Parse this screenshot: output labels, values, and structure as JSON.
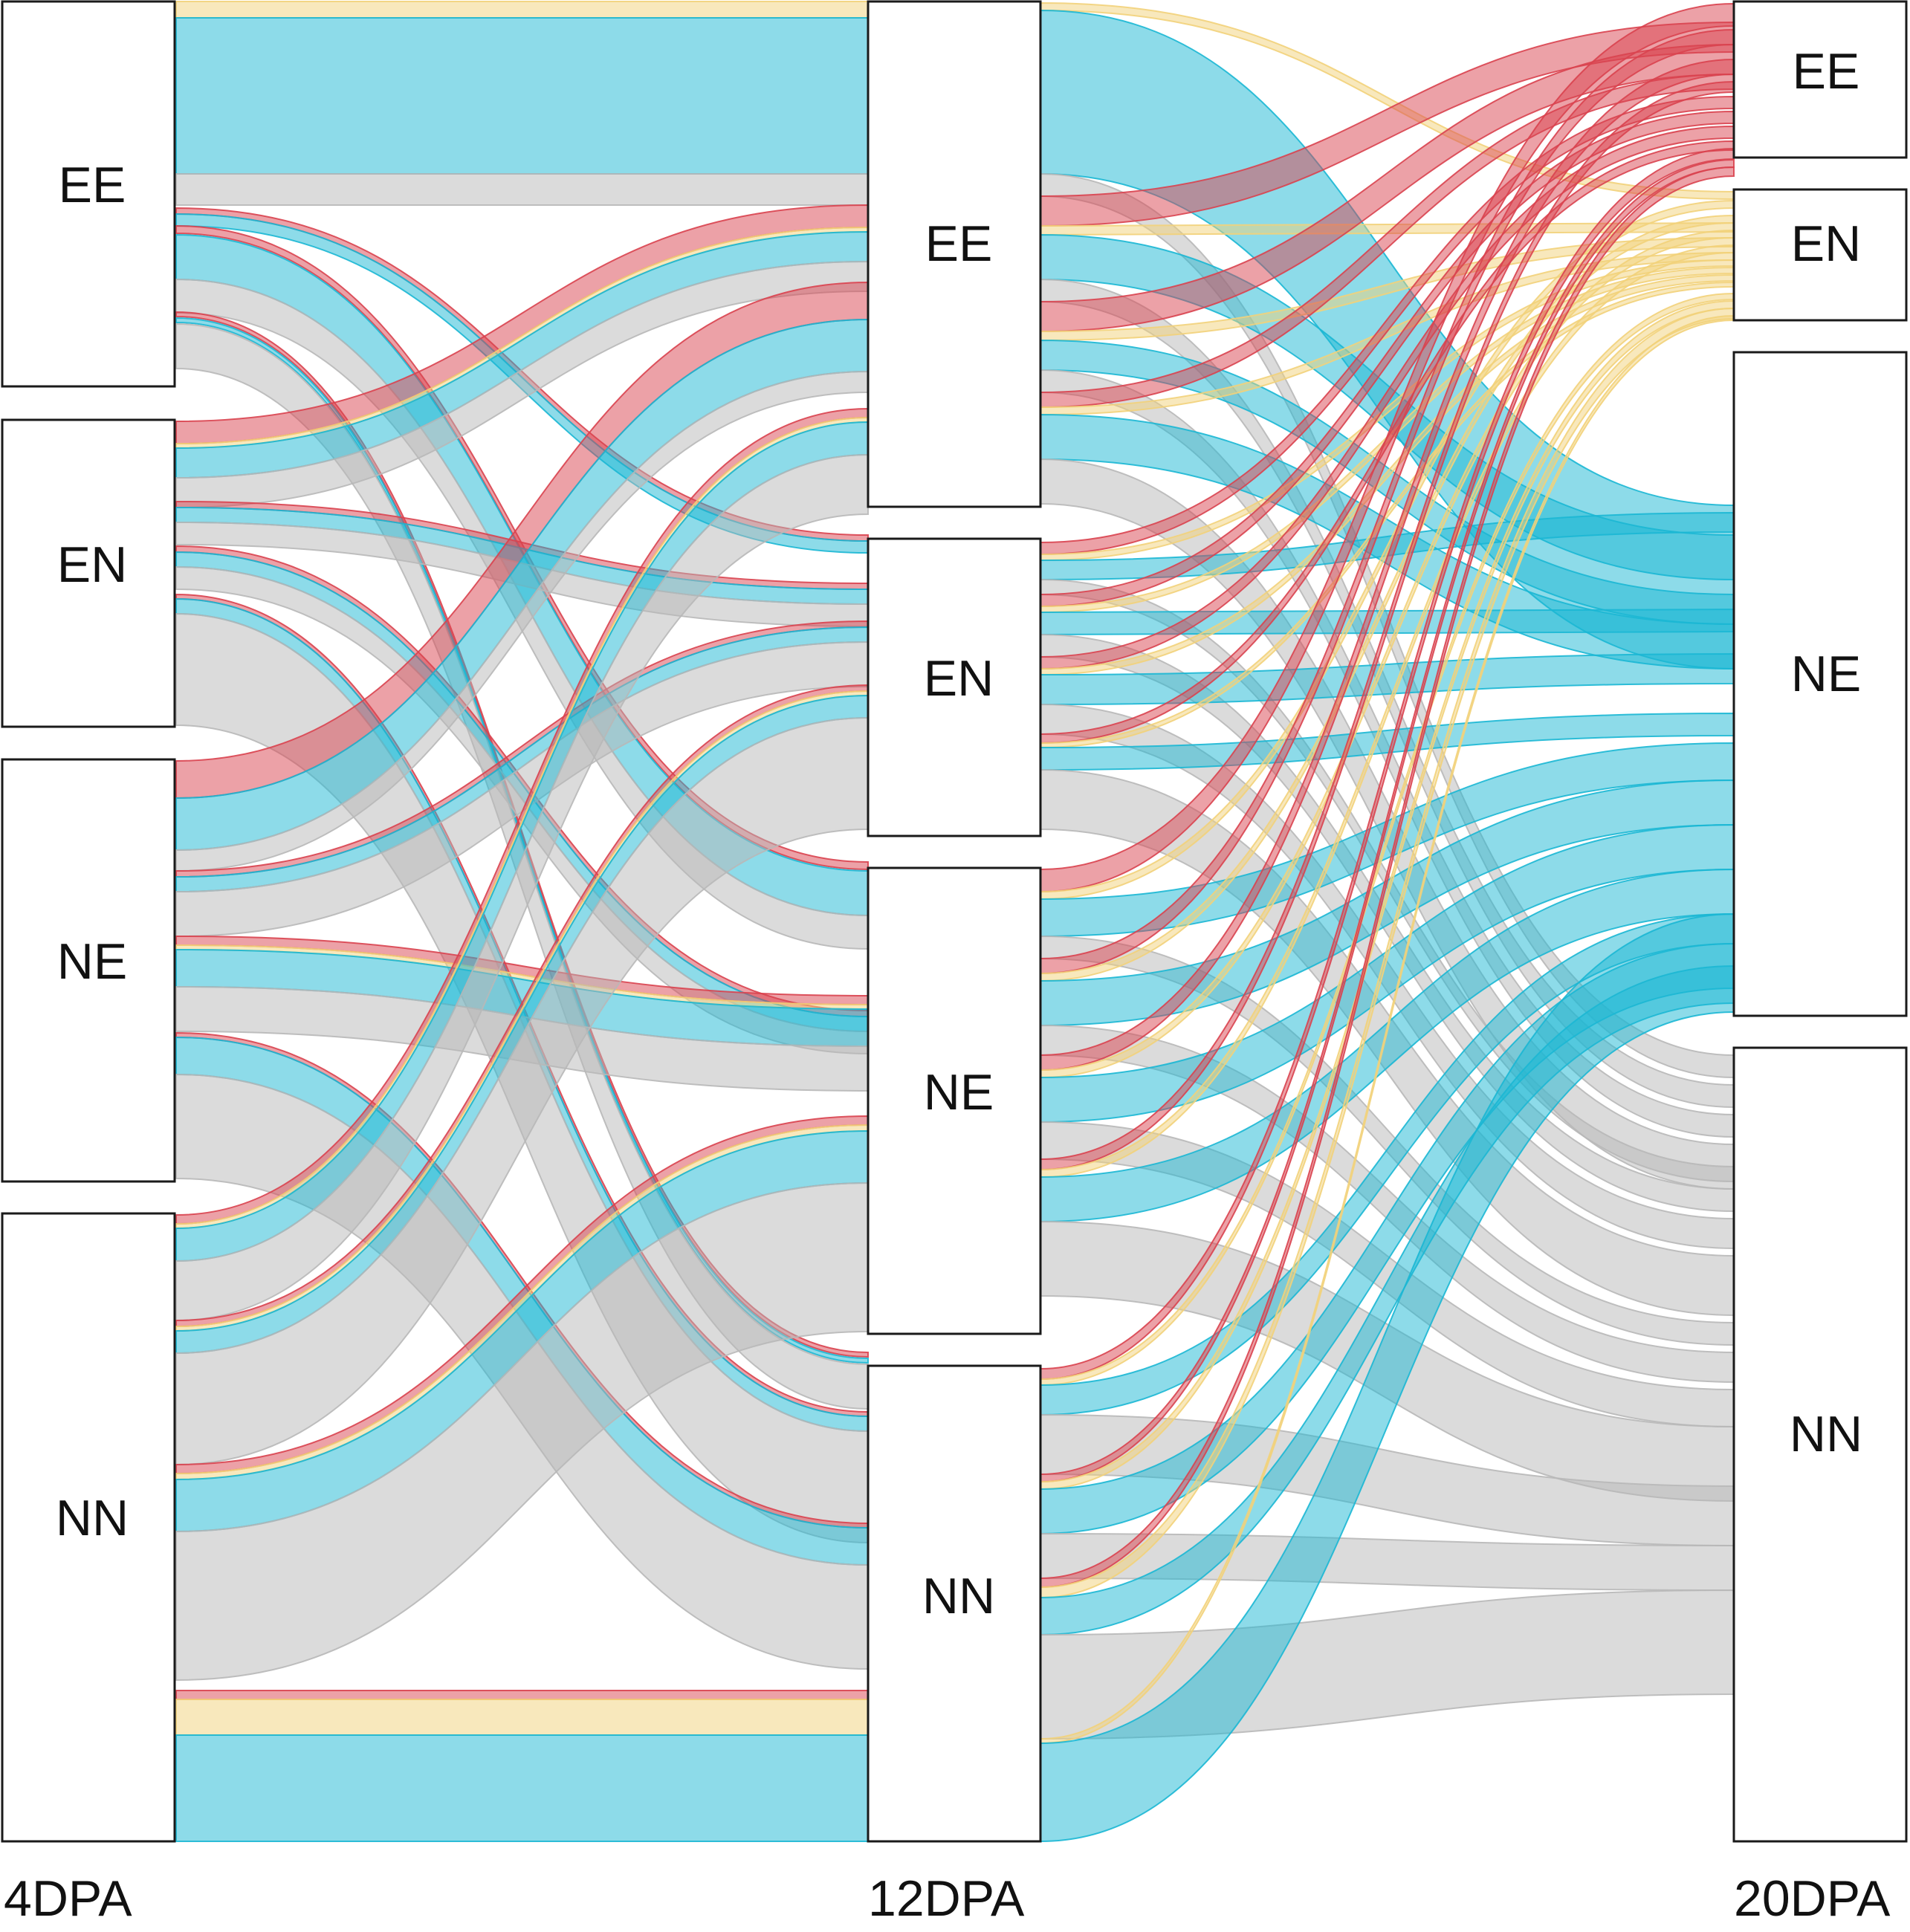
{
  "colors": {
    "EE": "#d9434f",
    "EN": "#f2d27a",
    "NE": "#1bb7d4",
    "NN": "#b8b8b8",
    "node_fill": "#ffffff",
    "node_stroke": "#1a1a1a"
  },
  "stages": [
    {
      "label": "4DPA",
      "nodes": [
        "EE",
        "EN",
        "NE",
        "NN"
      ]
    },
    {
      "label": "12DPA",
      "nodes": [
        "EE",
        "EN",
        "NE",
        "NN"
      ]
    },
    {
      "label": "20DPA",
      "nodes": [
        "EE",
        "EN",
        "NE",
        "NN"
      ]
    }
  ]
}
